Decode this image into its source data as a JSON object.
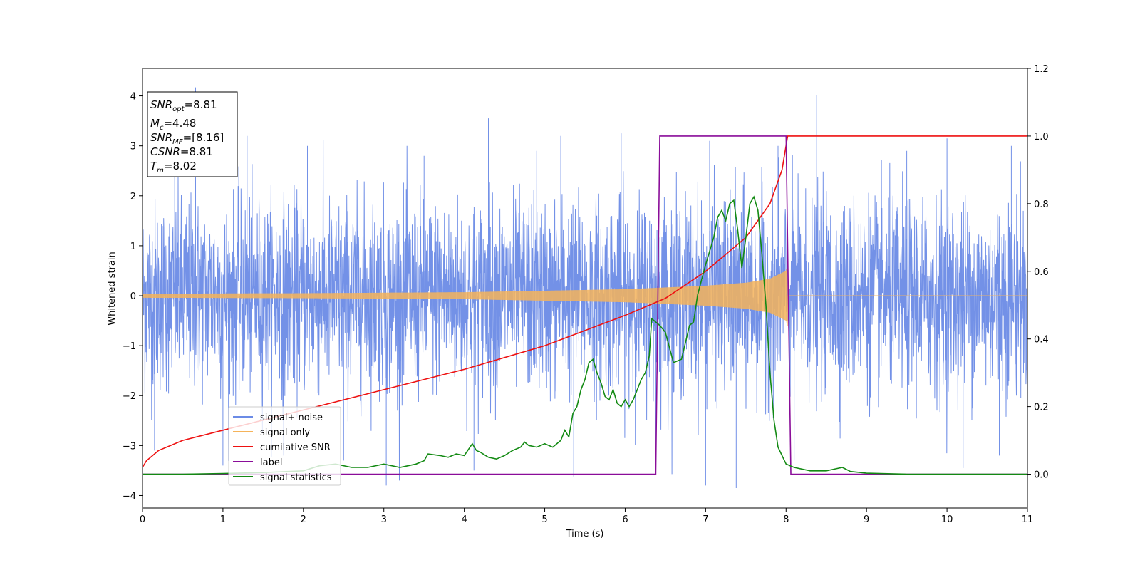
{
  "chart_data": {
    "type": "line",
    "xlabel": "Time (s)",
    "ylabel": "Whitened strain",
    "xlim": [
      0,
      11
    ],
    "ylim_left": [
      -4.25,
      4.55
    ],
    "ylim_right": [
      -0.1,
      1.2
    ],
    "x_ticks": [
      0,
      1,
      2,
      3,
      4,
      5,
      6,
      7,
      8,
      9,
      10,
      11
    ],
    "y_ticks_left": [
      -4,
      -3,
      -2,
      -1,
      0,
      1,
      2,
      3,
      4
    ],
    "y_ticks_right": [
      0.0,
      0.2,
      0.4,
      0.6,
      0.8,
      1.0,
      1.2
    ],
    "grid": false,
    "legend_position": "lower-left",
    "annotation": {
      "snr_opt_label": "SNR",
      "snr_opt_sub": "opt",
      "snr_opt_value": "=8.81",
      "mc_label": "M",
      "mc_sub": "c",
      "mc_value": "=4.48",
      "snr_mf_label": "SNR",
      "snr_mf_sub": "MF",
      "snr_mf_value": "=[8.16]",
      "csnr_label": "CSNR",
      "csnr_value": "=8.81",
      "tm_label": "T",
      "tm_sub": "m",
      "tm_value": "=8.02"
    },
    "series": [
      {
        "name": "signal+ noise",
        "color": "#6b8be6",
        "axis": "left",
        "kind": "noise",
        "std": 0.95,
        "range": [
          0,
          11
        ]
      },
      {
        "name": "signal only",
        "color": "#f5b35a",
        "axis": "left",
        "kind": "chirp",
        "merger_time": 8.02,
        "envelope": {
          "x": [
            0,
            2,
            4,
            6,
            7,
            7.5,
            7.8,
            8.0,
            8.02
          ],
          "y": [
            0.04,
            0.05,
            0.07,
            0.13,
            0.2,
            0.26,
            0.34,
            0.5,
            0.62
          ]
        }
      },
      {
        "name": "cumilative SNR",
        "color": "#ee1111",
        "axis": "right",
        "x": [
          0,
          0.05,
          0.2,
          0.5,
          1,
          2,
          3,
          4,
          5,
          6,
          6.5,
          7,
          7.5,
          7.8,
          7.95,
          8.02,
          8.03,
          11
        ],
        "y": [
          0.02,
          0.04,
          0.07,
          0.1,
          0.13,
          0.19,
          0.25,
          0.31,
          0.38,
          0.47,
          0.52,
          0.6,
          0.7,
          0.8,
          0.9,
          1.0,
          1.0,
          1.0
        ]
      },
      {
        "name": "label",
        "color": "#8a0d99",
        "axis": "right",
        "x": [
          0,
          6.38,
          6.43,
          8.0,
          8.06,
          11
        ],
        "y": [
          0.0,
          0.0,
          1.0,
          1.0,
          0.0,
          0.0
        ]
      },
      {
        "name": "signal statistics",
        "color": "#138a13",
        "axis": "right",
        "x": [
          0,
          0.5,
          1,
          1.5,
          2,
          2.2,
          2.4,
          2.6,
          2.8,
          3,
          3.2,
          3.4,
          3.5,
          3.55,
          3.7,
          3.8,
          3.9,
          4.0,
          4.1,
          4.15,
          4.2,
          4.3,
          4.4,
          4.5,
          4.6,
          4.7,
          4.75,
          4.8,
          4.9,
          5.0,
          5.1,
          5.2,
          5.25,
          5.3,
          5.35,
          5.4,
          5.45,
          5.5,
          5.55,
          5.6,
          5.65,
          5.7,
          5.75,
          5.8,
          5.85,
          5.9,
          5.95,
          6.0,
          6.05,
          6.1,
          6.15,
          6.2,
          6.25,
          6.3,
          6.33,
          6.38,
          6.43,
          6.5,
          6.6,
          6.7,
          6.8,
          6.85,
          6.9,
          7.0,
          7.1,
          7.15,
          7.2,
          7.25,
          7.3,
          7.35,
          7.4,
          7.45,
          7.5,
          7.55,
          7.6,
          7.65,
          7.7,
          7.75,
          7.8,
          7.85,
          7.9,
          8.0,
          8.1,
          8.3,
          8.5,
          8.6,
          8.7,
          8.8,
          9.0,
          9.5,
          10,
          11
        ],
        "y": [
          0.0,
          0.0,
          0.002,
          0.005,
          0.01,
          0.025,
          0.03,
          0.02,
          0.02,
          0.03,
          0.02,
          0.03,
          0.04,
          0.06,
          0.055,
          0.05,
          0.06,
          0.055,
          0.09,
          0.07,
          0.065,
          0.05,
          0.045,
          0.055,
          0.07,
          0.08,
          0.095,
          0.085,
          0.08,
          0.09,
          0.08,
          0.1,
          0.13,
          0.11,
          0.18,
          0.2,
          0.25,
          0.28,
          0.33,
          0.34,
          0.3,
          0.27,
          0.23,
          0.22,
          0.25,
          0.21,
          0.2,
          0.22,
          0.2,
          0.22,
          0.25,
          0.28,
          0.3,
          0.35,
          0.46,
          0.45,
          0.44,
          0.42,
          0.33,
          0.34,
          0.44,
          0.45,
          0.53,
          0.62,
          0.7,
          0.76,
          0.78,
          0.75,
          0.8,
          0.81,
          0.72,
          0.61,
          0.7,
          0.8,
          0.82,
          0.78,
          0.65,
          0.5,
          0.3,
          0.16,
          0.08,
          0.03,
          0.02,
          0.01,
          0.01,
          0.015,
          0.02,
          0.008,
          0.003,
          0.0,
          0.0,
          0.0
        ]
      }
    ],
    "noise_spikes": [
      {
        "x": 0.15,
        "y": -3.1
      },
      {
        "x": 0.4,
        "y": 2.8
      },
      {
        "x": 0.66,
        "y": 4.17
      },
      {
        "x": 1.0,
        "y": -3.4
      },
      {
        "x": 1.3,
        "y": 3.2
      },
      {
        "x": 1.75,
        "y": -3.2
      },
      {
        "x": 2.05,
        "y": 3.0
      },
      {
        "x": 2.5,
        "y": -3.3
      },
      {
        "x": 3.03,
        "y": -3.8
      },
      {
        "x": 3.6,
        "y": -3.5
      },
      {
        "x": 3.5,
        "y": 2.8
      },
      {
        "x": 4.3,
        "y": 3.55
      },
      {
        "x": 4.12,
        "y": -3.5
      },
      {
        "x": 4.9,
        "y": 2.9
      },
      {
        "x": 5.36,
        "y": -3.62
      },
      {
        "x": 5.2,
        "y": 3.2
      },
      {
        "x": 5.95,
        "y": 3.25
      },
      {
        "x": 6.38,
        "y": -3.3
      },
      {
        "x": 7.0,
        "y": -3.8
      },
      {
        "x": 7.38,
        "y": -3.85
      },
      {
        "x": 7.05,
        "y": 3.1
      },
      {
        "x": 7.9,
        "y": 3.0
      },
      {
        "x": 8.1,
        "y": -3.3
      },
      {
        "x": 8.38,
        "y": 4.02
      },
      {
        "x": 9.5,
        "y": 2.9
      },
      {
        "x": 10.0,
        "y": 3.15
      },
      {
        "x": 10.2,
        "y": -3.45
      },
      {
        "x": 10.8,
        "y": 3.0
      },
      {
        "x": 10.65,
        "y": -3.2
      }
    ]
  }
}
